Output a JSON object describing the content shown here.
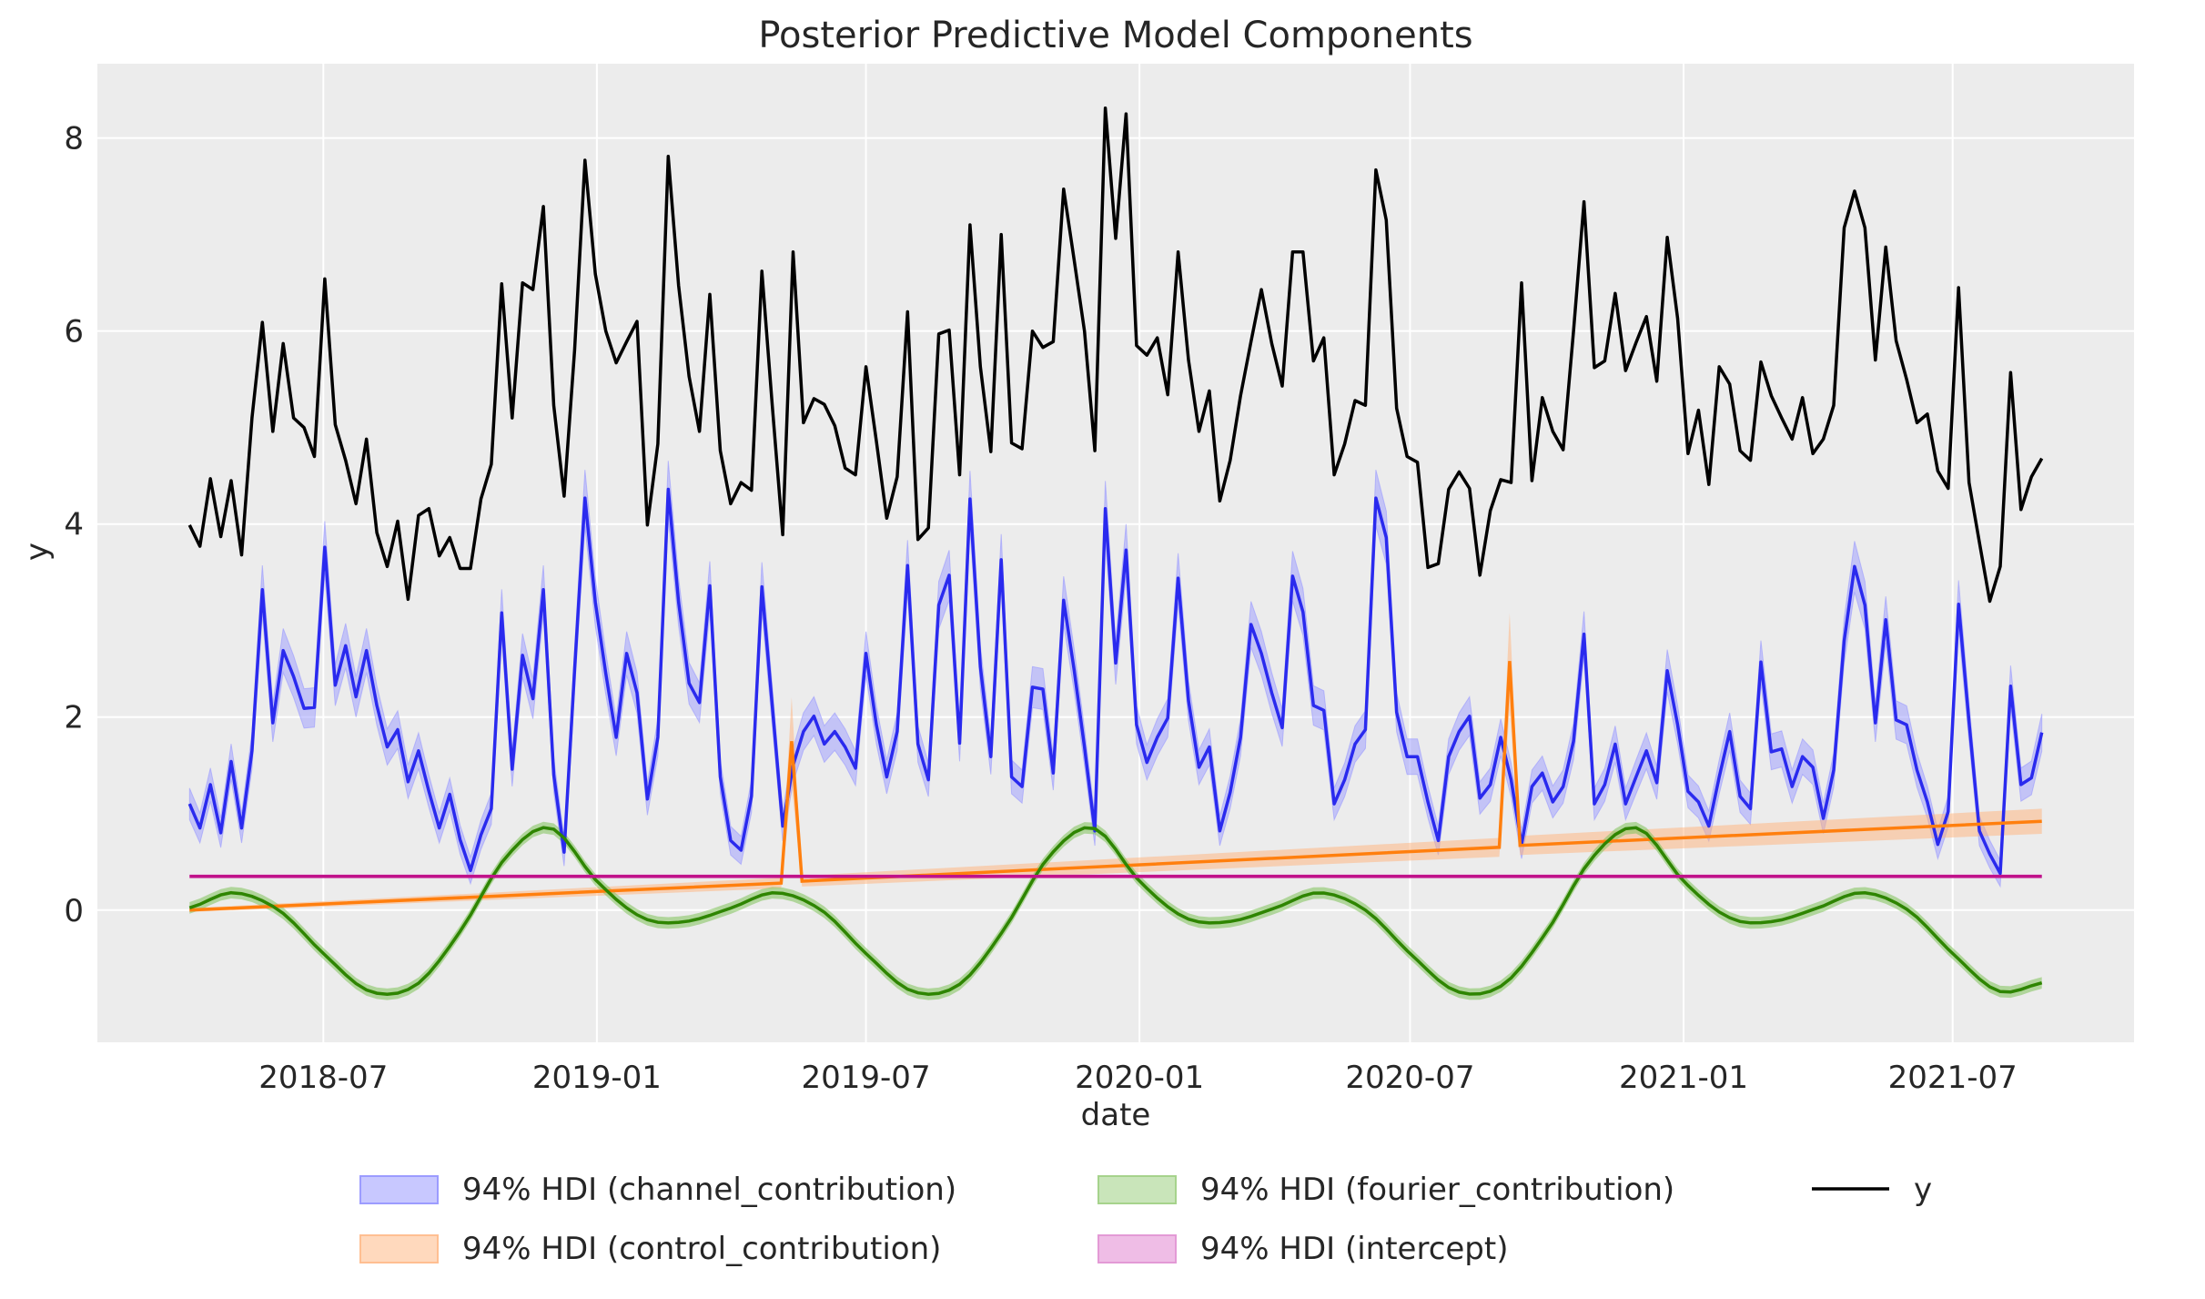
{
  "chart_data": {
    "type": "line",
    "title": "Posterior Predictive Model Components",
    "xlabel": "date",
    "ylabel": "y",
    "x_start": "2018-04-02",
    "x_frequency": "weekly",
    "xlim": [
      "2018-01-30",
      "2021-10-31"
    ],
    "ylim": [
      -1.37,
      8.77
    ],
    "x_ticks": [
      {
        "date": "2018-07-01",
        "label": "2018-07"
      },
      {
        "date": "2019-01-01",
        "label": "2019-01"
      },
      {
        "date": "2019-07-01",
        "label": "2019-07"
      },
      {
        "date": "2020-01-01",
        "label": "2020-01"
      },
      {
        "date": "2020-07-01",
        "label": "2020-07"
      },
      {
        "date": "2021-01-01",
        "label": "2021-01"
      },
      {
        "date": "2021-07-01",
        "label": "2021-07"
      }
    ],
    "y_ticks": [
      {
        "value": 0,
        "label": "0"
      },
      {
        "value": 2,
        "label": "2"
      },
      {
        "value": 4,
        "label": "4"
      },
      {
        "value": 6,
        "label": "6"
      },
      {
        "value": 8,
        "label": "8"
      }
    ],
    "grid": true,
    "legend_placement": "bottom",
    "colors": {
      "background": "#eaeaf2",
      "y": "#000000",
      "channel": "#2a2aee",
      "channel_band": "#9999ff",
      "control": "#ff7f0e",
      "control_band": "#ffb27a",
      "fourier": "#2e8500",
      "fourier_band": "#7fc35a",
      "intercept": "#c0128a",
      "intercept_band": "#e48bd0"
    },
    "series": {
      "y": [
        3.99,
        3.77,
        4.47,
        3.87,
        4.45,
        3.68,
        5.1,
        6.09,
        4.96,
        5.87,
        5.1,
        5.0,
        4.7,
        6.54,
        5.03,
        4.66,
        4.21,
        4.88,
        3.91,
        3.56,
        4.03,
        3.22,
        4.09,
        4.16,
        3.67,
        3.86,
        3.54,
        3.54,
        4.26,
        4.62,
        6.49,
        5.1,
        6.5,
        6.43,
        7.29,
        5.23,
        4.29,
        5.8,
        7.77,
        6.59,
        6.0,
        5.67,
        5.89,
        6.1,
        3.99,
        4.83,
        7.81,
        6.47,
        5.53,
        4.96,
        6.38,
        4.76,
        4.21,
        4.43,
        4.35,
        6.62,
        5.23,
        3.89,
        6.82,
        5.05,
        5.3,
        5.24,
        5.02,
        4.58,
        4.51,
        5.63,
        4.86,
        4.06,
        4.49,
        6.2,
        3.84,
        3.96,
        5.97,
        6.01,
        4.51,
        7.1,
        5.63,
        4.75,
        7.0,
        4.84,
        4.78,
        6.0,
        5.83,
        5.89,
        7.47,
        6.74,
        6.0,
        4.76,
        8.31,
        6.96,
        8.25,
        5.85,
        5.75,
        5.93,
        5.34,
        6.82,
        5.7,
        4.96,
        5.38,
        4.24,
        4.66,
        5.33,
        5.89,
        6.43,
        5.87,
        5.43,
        6.82,
        6.82,
        5.69,
        5.93,
        4.51,
        4.83,
        5.28,
        5.23,
        7.67,
        7.15,
        5.2,
        4.7,
        4.64,
        3.55,
        3.59,
        4.36,
        4.54,
        4.37,
        3.47,
        4.14,
        4.46,
        4.43,
        6.5,
        4.45,
        5.31,
        4.96,
        4.77,
        6.0,
        7.34,
        5.62,
        5.69,
        6.39,
        5.59,
        5.88,
        6.15,
        5.48,
        6.97,
        6.13,
        4.73,
        5.18,
        4.41,
        5.63,
        5.45,
        4.76,
        4.66,
        5.68,
        5.33,
        5.1,
        4.88,
        5.31,
        4.73,
        4.88,
        5.23,
        7.07,
        7.45,
        7.07,
        5.7,
        6.87,
        5.9,
        5.5,
        5.05,
        5.14,
        4.55,
        4.37,
        6.45,
        4.43,
        3.81,
        3.2,
        3.56,
        5.57,
        4.15,
        4.49,
        4.68
      ],
      "channel_contribution": [
        1.1,
        0.85,
        1.3,
        0.8,
        1.54,
        0.85,
        1.65,
        3.32,
        1.94,
        2.69,
        2.42,
        2.09,
        2.1,
        3.76,
        2.33,
        2.74,
        2.21,
        2.69,
        2.12,
        1.69,
        1.87,
        1.33,
        1.65,
        1.23,
        0.85,
        1.2,
        0.73,
        0.41,
        0.78,
        1.05,
        3.08,
        1.46,
        2.64,
        2.19,
        3.32,
        1.4,
        0.6,
        2.49,
        4.27,
        3.19,
        2.45,
        1.79,
        2.66,
        2.25,
        1.15,
        1.79,
        4.36,
        3.19,
        2.35,
        2.15,
        3.36,
        1.38,
        0.72,
        0.62,
        1.18,
        3.35,
        2.12,
        0.87,
        1.5,
        1.85,
        2.01,
        1.72,
        1.85,
        1.69,
        1.47,
        2.66,
        1.92,
        1.38,
        1.85,
        3.57,
        1.72,
        1.35,
        3.16,
        3.47,
        1.73,
        4.26,
        2.52,
        1.59,
        3.63,
        1.38,
        1.28,
        2.31,
        2.29,
        1.42,
        3.21,
        2.49,
        1.69,
        0.82,
        4.16,
        2.56,
        3.73,
        1.92,
        1.53,
        1.79,
        1.99,
        3.44,
        2.17,
        1.48,
        1.69,
        0.82,
        1.22,
        1.79,
        2.96,
        2.66,
        2.25,
        1.89,
        3.46,
        3.09,
        2.12,
        2.07,
        1.1,
        1.35,
        1.72,
        1.87,
        4.27,
        3.86,
        2.05,
        1.59,
        1.59,
        1.12,
        0.72,
        1.59,
        1.85,
        2.01,
        1.16,
        1.3,
        1.79,
        1.35,
        0.68,
        1.28,
        1.42,
        1.12,
        1.28,
        1.75,
        2.86,
        1.1,
        1.3,
        1.72,
        1.1,
        1.38,
        1.65,
        1.32,
        2.48,
        1.92,
        1.23,
        1.12,
        0.87,
        1.38,
        1.85,
        1.18,
        1.05,
        2.57,
        1.64,
        1.67,
        1.28,
        1.59,
        1.48,
        0.95,
        1.45,
        2.79,
        3.56,
        3.16,
        1.94,
        3.01,
        1.97,
        1.92,
        1.45,
        1.12,
        0.68,
        1.02,
        3.17,
        1.95,
        0.82,
        0.58,
        0.38,
        2.32,
        1.3,
        1.37,
        1.84
      ],
      "control_contribution": [
        {
          "date": "2018-04-02",
          "value": 0.0
        },
        {
          "date": "2019-05-05",
          "value": 0.28
        },
        {
          "date": "2019-05-12",
          "value": 1.75
        },
        {
          "date": "2019-05-19",
          "value": 0.3
        },
        {
          "date": "2020-08-30",
          "value": 0.65
        },
        {
          "date": "2020-09-06",
          "value": 2.58
        },
        {
          "date": "2020-09-13",
          "value": 0.67
        },
        {
          "date": "2021-08-30",
          "value": 0.92
        }
      ],
      "fourier_contribution_monthly": [
        0.02,
        0.18,
        0.0,
        -0.45,
        -0.84,
        -0.78,
        -0.22,
        0.55,
        0.85,
        0.3,
        -0.08,
        -0.12,
        0.02,
        0.18,
        0.0,
        -0.45,
        -0.84,
        -0.78,
        -0.22,
        0.55,
        0.85,
        0.3,
        -0.08,
        -0.12,
        0.02,
        0.18,
        0.0,
        -0.45,
        -0.84,
        -0.78,
        -0.22,
        0.55,
        0.85,
        0.3,
        -0.08,
        -0.12,
        0.02,
        0.18,
        0.0,
        -0.45,
        -0.84,
        -0.75
      ],
      "intercept": 0.35
    },
    "legend": [
      {
        "label": "94% HDI (channel_contribution)",
        "kind": "patch",
        "color": "#c8c8ff",
        "edge": "#9c9cff"
      },
      {
        "label": "94% HDI (control_contribution)",
        "kind": "patch",
        "color": "#ffd9bd",
        "edge": "#ffbf92"
      },
      {
        "label": "94% HDI (fourier_contribution)",
        "kind": "patch",
        "color": "#c9e5ba",
        "edge": "#a6d38c"
      },
      {
        "label": "94% HDI (intercept)",
        "kind": "patch",
        "color": "#efbde6",
        "edge": "#e39ad6"
      },
      {
        "label": "y",
        "kind": "line",
        "color": "#000000"
      }
    ]
  }
}
